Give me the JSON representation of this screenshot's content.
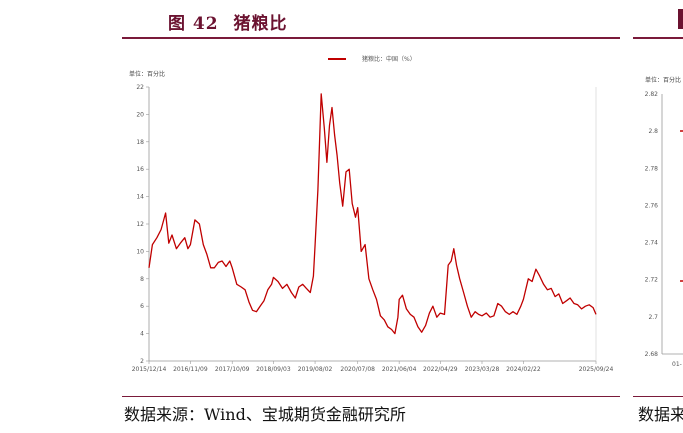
{
  "figure": {
    "number_label": "图 42",
    "title": "猪粮比"
  },
  "source": "数据来源：Wind、宝城期货金融研究所",
  "right_panel": {
    "unit": "单位：百分比",
    "y_ticks": [
      "2.82",
      "2.8",
      "2.78",
      "2.76",
      "2.74",
      "2.72",
      "2.7",
      "2.68"
    ],
    "x_tick_fragment": "01-",
    "source_fragment": "数据来"
  },
  "colors": {
    "series": "#c00000",
    "accent": "#7a1a3a"
  },
  "chart_data": {
    "type": "line",
    "title": "",
    "ylabel": "单位：百分比",
    "xlabel": "",
    "legend": {
      "position": "top-center",
      "entries": [
        "猪粮比：中国（%）"
      ]
    },
    "ylim": [
      2,
      22
    ],
    "y_ticks": [
      2,
      4,
      6,
      8,
      10,
      12,
      14,
      16,
      18,
      20,
      22
    ],
    "x_tick_labels": [
      "2015/12/14",
      "2016/11/09",
      "2017/10/09",
      "2018/09/03",
      "2019/08/02",
      "2020/07/08",
      "2021/06/04",
      "2022/04/29",
      "2023/03/28",
      "2024/02/22",
      "2025/09/24"
    ],
    "grid": false,
    "series": [
      {
        "name": "猪粮比：中国（%）",
        "x": [
          "2015-12-14",
          "2016-01-10",
          "2016-02-15",
          "2016-03-20",
          "2016-04-25",
          "2016-05-20",
          "2016-06-15",
          "2016-07-20",
          "2016-08-20",
          "2016-09-25",
          "2016-10-20",
          "2016-11-09",
          "2016-12-15",
          "2017-01-20",
          "2017-02-20",
          "2017-03-20",
          "2017-04-20",
          "2017-05-20",
          "2017-06-20",
          "2017-07-20",
          "2017-08-20",
          "2017-09-20",
          "2017-10-09",
          "2017-11-15",
          "2017-12-20",
          "2018-01-20",
          "2018-02-20",
          "2018-03-20",
          "2018-04-20",
          "2018-05-20",
          "2018-06-20",
          "2018-07-20",
          "2018-08-20",
          "2018-09-03",
          "2018-10-10",
          "2018-11-15",
          "2018-12-20",
          "2019-01-25",
          "2019-02-25",
          "2019-03-25",
          "2019-04-25",
          "2019-05-25",
          "2019-06-25",
          "2019-07-20",
          "2019-08-02",
          "2019-08-25",
          "2019-09-20",
          "2019-10-15",
          "2019-11-05",
          "2019-11-25",
          "2019-12-15",
          "2020-01-05",
          "2020-01-25",
          "2020-02-15",
          "2020-03-10",
          "2020-04-05",
          "2020-05-01",
          "2020-05-25",
          "2020-06-20",
          "2020-07-08",
          "2020-08-05",
          "2020-09-05",
          "2020-10-05",
          "2020-11-05",
          "2020-12-05",
          "2021-01-05",
          "2021-02-05",
          "2021-03-05",
          "2021-04-05",
          "2021-05-01",
          "2021-05-25",
          "2021-06-04",
          "2021-07-01",
          "2021-08-01",
          "2021-09-01",
          "2021-10-01",
          "2021-11-01",
          "2021-12-01",
          "2022-01-01",
          "2022-02-01",
          "2022-03-01",
          "2022-04-01",
          "2022-04-29",
          "2022-06-01",
          "2022-07-01",
          "2022-07-25",
          "2022-08-15",
          "2022-09-05",
          "2022-10-01",
          "2022-11-01",
          "2022-12-01",
          "2023-01-01",
          "2023-02-01",
          "2023-03-01",
          "2023-03-28",
          "2023-05-01",
          "2023-06-01",
          "2023-07-01",
          "2023-08-01",
          "2023-09-01",
          "2023-10-01",
          "2023-11-01",
          "2023-12-01",
          "2024-01-01",
          "2024-02-01",
          "2024-02-22",
          "2024-04-01",
          "2024-05-01",
          "2024-06-01",
          "2024-07-01",
          "2024-08-01",
          "2024-09-01",
          "2024-10-01",
          "2024-11-01",
          "2024-12-01",
          "2025-01-01",
          "2025-02-01",
          "2025-03-01",
          "2025-04-01",
          "2025-05-01",
          "2025-06-01",
          "2025-07-01",
          "2025-08-01",
          "2025-09-01",
          "2025-09-24"
        ],
        "y": [
          8.8,
          10.5,
          11.0,
          11.6,
          12.8,
          10.6,
          11.2,
          10.2,
          10.6,
          11.0,
          10.2,
          10.5,
          12.3,
          12.0,
          10.5,
          9.8,
          8.8,
          8.8,
          9.2,
          9.3,
          8.9,
          9.3,
          8.8,
          7.6,
          7.4,
          7.2,
          6.3,
          5.7,
          5.6,
          6.0,
          6.4,
          7.2,
          7.6,
          8.1,
          7.8,
          7.3,
          7.6,
          7.0,
          6.6,
          7.4,
          7.6,
          7.3,
          7.0,
          8.2,
          10.5,
          14.5,
          21.5,
          19.0,
          16.5,
          19.2,
          20.5,
          18.5,
          17.0,
          15.0,
          13.3,
          15.8,
          16.0,
          13.5,
          12.5,
          13.2,
          10.0,
          10.5,
          8.0,
          7.2,
          6.5,
          5.3,
          5.0,
          4.5,
          4.3,
          4.0,
          5.2,
          6.5,
          6.8,
          5.8,
          5.4,
          5.2,
          4.5,
          4.1,
          4.6,
          5.5,
          6.0,
          5.2,
          5.5,
          5.4,
          9.0,
          9.3,
          10.2,
          9.0,
          8.0,
          7.0,
          6.0,
          5.2,
          5.6,
          5.4,
          5.3,
          5.5,
          5.2,
          5.3,
          6.2,
          6.0,
          5.6,
          5.4,
          5.6,
          5.4,
          6.0,
          6.5,
          8.0,
          7.8,
          8.7,
          8.2,
          7.6,
          7.2,
          7.3,
          6.7,
          6.9,
          6.2,
          6.4,
          6.6,
          6.2,
          6.1,
          5.8,
          6.0,
          6.1,
          5.9,
          5.4
        ]
      }
    ]
  }
}
